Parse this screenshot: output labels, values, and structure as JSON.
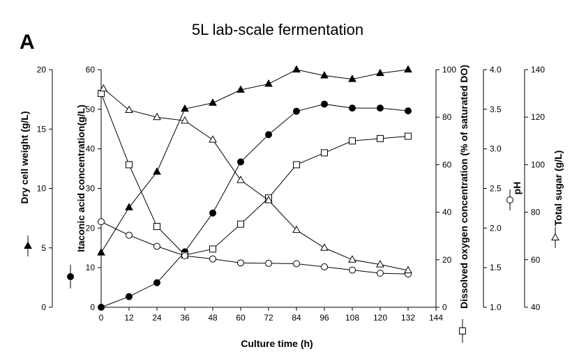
{
  "chart_data": {
    "type": "line",
    "panel_label": "A",
    "title": "5L lab-scale fermentation",
    "xlabel": "Culture time (h)",
    "xlim": [
      0,
      144
    ],
    "xticks": [
      0,
      12,
      24,
      36,
      48,
      60,
      72,
      84,
      96,
      108,
      120,
      132,
      144
    ],
    "grid": false,
    "axes": [
      {
        "id": "dcw",
        "label": "Dry cell weight (g/L)",
        "ylim": [
          0,
          20
        ],
        "ticks": [
          0,
          5,
          10,
          15,
          20
        ]
      },
      {
        "id": "ita",
        "label": "Itaconic acid concentration(g/L)",
        "ylim": [
          0,
          60
        ],
        "ticks": [
          0,
          10,
          20,
          30,
          40,
          50,
          60
        ]
      },
      {
        "id": "do",
        "label": "Dissolved oxygen concentration (% of saturated DO)",
        "ylim": [
          0,
          100
        ],
        "ticks": [
          0,
          20,
          40,
          60,
          80,
          100
        ]
      },
      {
        "id": "ph",
        "label": "pH",
        "ylim": [
          1.0,
          4.0
        ],
        "ticks": [
          "1.0",
          "1.5",
          "2.0",
          "2.5",
          "3.0",
          "3.5",
          "4.0"
        ]
      },
      {
        "id": "sugar",
        "label": "Total sugar (g/L)",
        "ylim": [
          40,
          140
        ],
        "ticks": [
          40,
          60,
          80,
          100,
          120,
          140
        ]
      }
    ],
    "series": [
      {
        "axis": "ita",
        "marker": "filled-circle",
        "x": [
          0,
          12,
          24,
          36,
          48,
          60,
          72,
          84,
          96,
          108,
          120,
          132
        ],
        "values": [
          0,
          2.7,
          6.2,
          14,
          23.8,
          36.7,
          43.6,
          49.5,
          51.3,
          50.3,
          50.3,
          49.6
        ]
      },
      {
        "axis": "dcw",
        "marker": "filled-triangle",
        "x": [
          0,
          12,
          24,
          36,
          48,
          60,
          72,
          84,
          96,
          108,
          120,
          132
        ],
        "values": [
          4.6,
          8.4,
          11.4,
          16.7,
          17.2,
          18.3,
          18.8,
          20.0,
          19.5,
          19.2,
          19.7,
          20.0
        ]
      },
      {
        "axis": "do",
        "marker": "open-square",
        "x": [
          0,
          12,
          24,
          36,
          48,
          60,
          72,
          84,
          96,
          108,
          120,
          132
        ],
        "values": [
          90,
          60,
          34,
          22,
          24.5,
          35,
          46,
          60,
          65,
          70,
          71,
          72
        ]
      },
      {
        "axis": "ph",
        "marker": "open-circle",
        "x": [
          0,
          12,
          24,
          36,
          48,
          60,
          72,
          84,
          96,
          108,
          120,
          132
        ],
        "values": [
          2.08,
          1.91,
          1.77,
          1.65,
          1.61,
          1.56,
          1.555,
          1.55,
          1.51,
          1.47,
          1.43,
          1.42
        ]
      },
      {
        "axis": "sugar",
        "marker": "open-triangle",
        "x": [
          1,
          12,
          24,
          36,
          48,
          60,
          72,
          84,
          96,
          108,
          120,
          132
        ],
        "values": [
          132,
          123,
          120,
          118.5,
          110.5,
          93.5,
          85,
          72.5,
          65,
          60,
          58,
          55.5
        ]
      }
    ]
  }
}
